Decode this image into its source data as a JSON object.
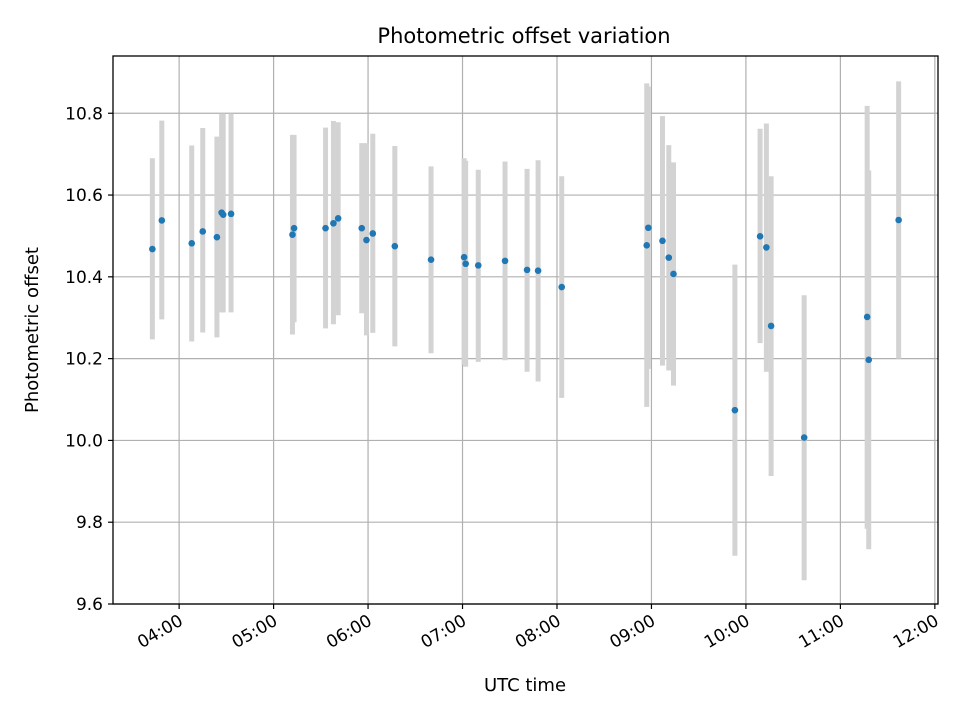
{
  "chart_data": {
    "type": "scatter",
    "title": "Photometric offset variation",
    "xlabel": "UTC time",
    "ylabel": "Photometric offset",
    "x_unit": "UTC hour of day",
    "xlim": [
      "03:18",
      "12:02"
    ],
    "ylim": [
      9.6,
      10.94
    ],
    "xticks": [
      "04:00",
      "05:00",
      "06:00",
      "07:00",
      "08:00",
      "09:00",
      "10:00",
      "11:00",
      "12:00"
    ],
    "yticks": [
      "9.6",
      "9.8",
      "10.0",
      "10.2",
      "10.4",
      "10.6",
      "10.8"
    ],
    "grid": true,
    "colors": {
      "point": "#1f77b4",
      "errorbar": "#d3d3d3"
    },
    "points": [
      {
        "x": "03:43",
        "y": 10.468,
        "lo": 10.247,
        "hi": 10.69
      },
      {
        "x": "03:49",
        "y": 10.538,
        "lo": 10.296,
        "hi": 10.782
      },
      {
        "x": "04:08",
        "y": 10.482,
        "lo": 10.242,
        "hi": 10.721
      },
      {
        "x": "04:15",
        "y": 10.511,
        "lo": 10.264,
        "hi": 10.764
      },
      {
        "x": "04:24",
        "y": 10.497,
        "lo": 10.252,
        "hi": 10.743
      },
      {
        "x": "04:27",
        "y": 10.557,
        "lo": 10.313,
        "hi": 10.799
      },
      {
        "x": "04:28",
        "y": 10.552,
        "lo": 10.313,
        "hi": 10.799
      },
      {
        "x": "04:33",
        "y": 10.554,
        "lo": 10.313,
        "hi": 10.799
      },
      {
        "x": "05:12",
        "y": 10.503,
        "lo": 10.259,
        "hi": 10.747
      },
      {
        "x": "05:13",
        "y": 10.519,
        "lo": 10.289,
        "hi": 10.747
      },
      {
        "x": "05:33",
        "y": 10.519,
        "lo": 10.274,
        "hi": 10.765
      },
      {
        "x": "05:38",
        "y": 10.531,
        "lo": 10.284,
        "hi": 10.781
      },
      {
        "x": "05:41",
        "y": 10.543,
        "lo": 10.306,
        "hi": 10.778
      },
      {
        "x": "05:56",
        "y": 10.519,
        "lo": 10.311,
        "hi": 10.727
      },
      {
        "x": "05:59",
        "y": 10.49,
        "lo": 10.257,
        "hi": 10.727
      },
      {
        "x": "06:03",
        "y": 10.506,
        "lo": 10.263,
        "hi": 10.75
      },
      {
        "x": "06:17",
        "y": 10.475,
        "lo": 10.23,
        "hi": 10.72
      },
      {
        "x": "06:40",
        "y": 10.442,
        "lo": 10.213,
        "hi": 10.67
      },
      {
        "x": "07:01",
        "y": 10.448,
        "lo": 10.185,
        "hi": 10.69
      },
      {
        "x": "07:02",
        "y": 10.432,
        "lo": 10.18,
        "hi": 10.684
      },
      {
        "x": "07:10",
        "y": 10.428,
        "lo": 10.192,
        "hi": 10.662
      },
      {
        "x": "07:27",
        "y": 10.439,
        "lo": 10.196,
        "hi": 10.682
      },
      {
        "x": "07:41",
        "y": 10.417,
        "lo": 10.168,
        "hi": 10.664
      },
      {
        "x": "07:48",
        "y": 10.415,
        "lo": 10.144,
        "hi": 10.685
      },
      {
        "x": "08:03",
        "y": 10.375,
        "lo": 10.104,
        "hi": 10.646
      },
      {
        "x": "08:57",
        "y": 10.477,
        "lo": 10.082,
        "hi": 10.873
      },
      {
        "x": "08:58",
        "y": 10.52,
        "lo": 10.175,
        "hi": 10.865
      },
      {
        "x": "09:07",
        "y": 10.488,
        "lo": 10.183,
        "hi": 10.793
      },
      {
        "x": "09:11",
        "y": 10.447,
        "lo": 10.171,
        "hi": 10.722
      },
      {
        "x": "09:14",
        "y": 10.407,
        "lo": 10.134,
        "hi": 10.68
      },
      {
        "x": "09:53",
        "y": 10.074,
        "lo": 9.718,
        "hi": 10.43
      },
      {
        "x": "10:09",
        "y": 10.499,
        "lo": 10.238,
        "hi": 10.762
      },
      {
        "x": "10:13",
        "y": 10.472,
        "lo": 10.168,
        "hi": 10.775
      },
      {
        "x": "10:16",
        "y": 10.28,
        "lo": 9.913,
        "hi": 10.646
      },
      {
        "x": "10:37",
        "y": 10.007,
        "lo": 9.658,
        "hi": 10.355
      },
      {
        "x": "11:17",
        "y": 10.302,
        "lo": 9.784,
        "hi": 10.818
      },
      {
        "x": "11:18",
        "y": 10.197,
        "lo": 9.734,
        "hi": 10.66
      },
      {
        "x": "11:37",
        "y": 10.539,
        "lo": 10.2,
        "hi": 10.878
      }
    ]
  }
}
